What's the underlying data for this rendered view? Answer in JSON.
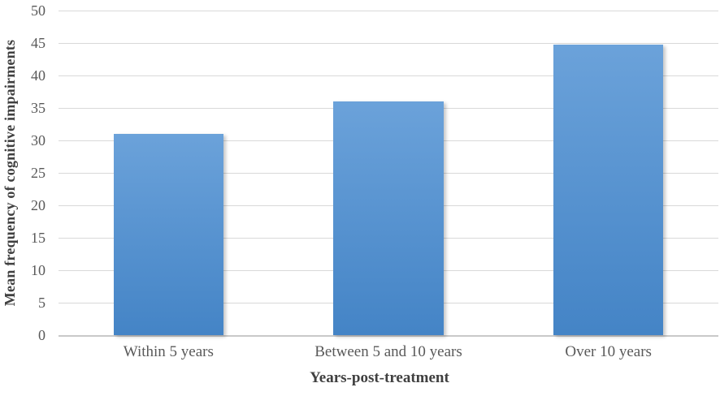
{
  "chart_data": {
    "type": "bar",
    "title": "",
    "categories": [
      "Within 5 years",
      "Between 5 and 10 years",
      "Over 10 years"
    ],
    "values": [
      31,
      36,
      44.8
    ],
    "xlabel": "Years-post-treatment",
    "ylabel": "Mean frequency of cognitive impairments",
    "ylim": [
      0,
      50
    ],
    "ytick_step": 5,
    "yticks": [
      "0",
      "5",
      "10",
      "15",
      "20",
      "25",
      "30",
      "35",
      "40",
      "45",
      "50"
    ],
    "grid": "horizontal-only",
    "legend": "none",
    "bar_gap_ratio": 0.5,
    "colors": {
      "bar_gradient_top": "#6ba2da",
      "bar_gradient_bottom": "#4484c6",
      "gridline": "#d9d9d9",
      "axis_line": "#c9c9c9",
      "tick_label": "#595959",
      "axis_title": "#404040",
      "background": "#ffffff"
    }
  }
}
